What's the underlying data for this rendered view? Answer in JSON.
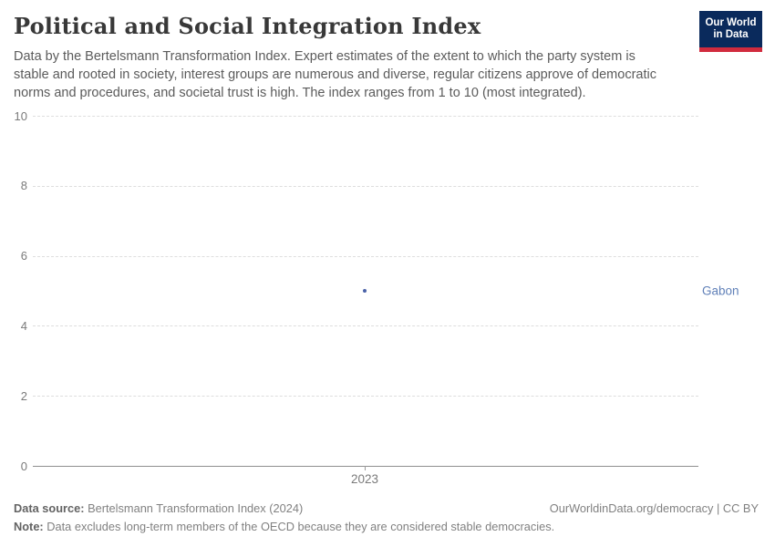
{
  "header": {
    "title": "Political and Social Integration Index",
    "subtitle": "Data by the Bertelsmann Transformation Index. Expert estimates of the extent to which the party system is stable and rooted in society, interest groups are numerous and diverse, regular citizens approve of democratic norms and procedures, and societal trust is high. The index ranges from 1 to 10 (most integrated).",
    "logo": {
      "line1": "Our World",
      "line2": "in Data",
      "bg_color": "#0a2a5c",
      "bar_color": "#d12b3e"
    }
  },
  "chart_data": {
    "type": "scatter",
    "series": [
      {
        "name": "Gabon",
        "x": [
          2023
        ],
        "values": [
          5
        ]
      }
    ],
    "x_ticks": [
      "2023"
    ],
    "y_ticks": [
      0,
      2,
      4,
      6,
      8,
      10
    ],
    "ylim": [
      0,
      10
    ],
    "grid": "horizontal-dashed",
    "legend_position": "right-entity-label",
    "point_color": "#4a62a8",
    "entity_label_color": "#6080b8",
    "title": "Political and Social Integration Index"
  },
  "footer": {
    "source_label": "Data source:",
    "source_text": " Bertelsmann Transformation Index (2024)",
    "right_text": "OurWorldinData.org/democracy | CC BY",
    "note_label": "Note:",
    "note_text": " Data excludes long-term members of the OECD because they are considered stable democracies."
  }
}
